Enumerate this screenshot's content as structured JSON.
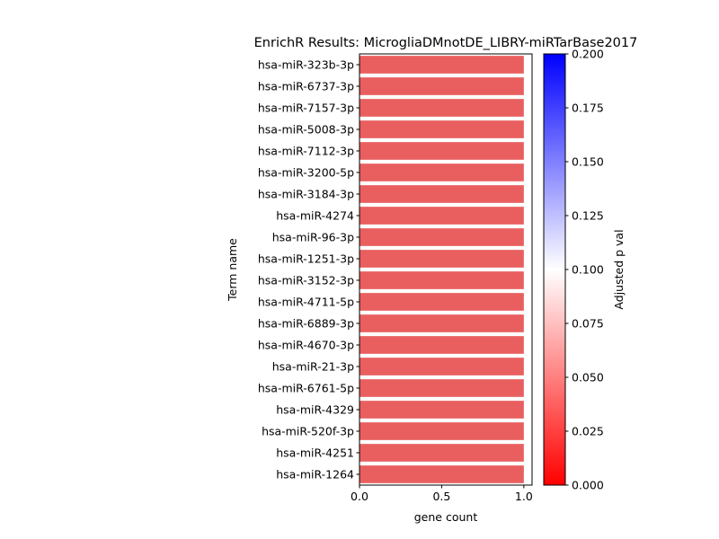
{
  "chart_data": {
    "type": "bar",
    "orientation": "horizontal",
    "title": "EnrichR Results: MicrogliaDMnotDE_LIBRY-miRTarBase2017",
    "xlabel": "gene count",
    "ylabel": "Term name",
    "xlim": [
      0,
      1.05
    ],
    "x_ticks": [
      "0.0",
      "0.5",
      "1.0"
    ],
    "x_tick_values": [
      0,
      0.5,
      1.0
    ],
    "grid": false,
    "bar_color": "#e95f5f",
    "categories": [
      "hsa-miR-323b-3p",
      "hsa-miR-6737-3p",
      "hsa-miR-7157-3p",
      "hsa-miR-5008-3p",
      "hsa-miR-7112-3p",
      "hsa-miR-3200-5p",
      "hsa-miR-3184-3p",
      "hsa-miR-4274",
      "hsa-miR-96-3p",
      "hsa-miR-1251-3p",
      "hsa-miR-3152-3p",
      "hsa-miR-4711-5p",
      "hsa-miR-6889-3p",
      "hsa-miR-4670-3p",
      "hsa-miR-21-3p",
      "hsa-miR-6761-5p",
      "hsa-miR-4329",
      "hsa-miR-520f-3p",
      "hsa-miR-4251",
      "hsa-miR-1264"
    ],
    "values": [
      1,
      1,
      1,
      1,
      1,
      1,
      1,
      1,
      1,
      1,
      1,
      1,
      1,
      1,
      1,
      1,
      1,
      1,
      1,
      1
    ],
    "colorbar": {
      "label": "Adjusted p val",
      "range": [
        0,
        0.2
      ],
      "ticks": [
        "0.000",
        "0.025",
        "0.050",
        "0.075",
        "0.100",
        "0.125",
        "0.150",
        "0.175",
        "0.200"
      ],
      "tick_values": [
        0,
        0.025,
        0.05,
        0.075,
        0.1,
        0.125,
        0.15,
        0.175,
        0.2
      ],
      "colors": [
        "#ff0000",
        "#ffffff",
        "#0000ff"
      ]
    }
  }
}
